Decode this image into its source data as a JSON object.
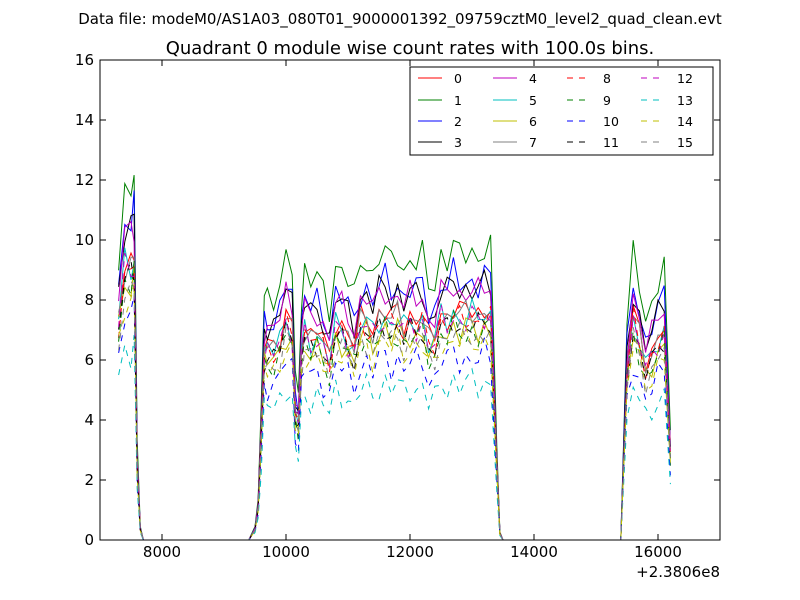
{
  "chart_data": {
    "type": "line",
    "suptitle": "Data file: modeM0/AS1A03_080T01_9000001392_09759cztM0_level2_quad_clean.evt",
    "title": "Quadrant 0 module wise count rates with 100.0s bins.",
    "xlabel": "",
    "ylabel": "",
    "xlim": [
      7000,
      17000
    ],
    "ylim": [
      0,
      16
    ],
    "xticks": [
      8000,
      10000,
      12000,
      14000,
      16000
    ],
    "xtick_labels": [
      "8000",
      "10000",
      "12000",
      "14000",
      "16000"
    ],
    "yticks": [
      0,
      2,
      4,
      6,
      8,
      10,
      12,
      14,
      16
    ],
    "ytick_labels": [
      "0",
      "2",
      "4",
      "6",
      "8",
      "10",
      "12",
      "14",
      "16"
    ],
    "x_offset_label": "+2.3806e8",
    "grid": false,
    "legend_placement": "top-right",
    "legend_columns": 4,
    "series": [
      {
        "name": "0",
        "color": "#ff0000",
        "dash": "solid",
        "level": 7.2
      },
      {
        "name": "1",
        "color": "#008000",
        "dash": "solid",
        "level": 9.0
      },
      {
        "name": "2",
        "color": "#0000ff",
        "dash": "solid",
        "level": 8.1
      },
      {
        "name": "3",
        "color": "#000000",
        "dash": "solid",
        "level": 7.9
      },
      {
        "name": "4",
        "color": "#bf00bf",
        "dash": "solid",
        "level": 7.8
      },
      {
        "name": "5",
        "color": "#00bfbf",
        "dash": "solid",
        "level": 7.0
      },
      {
        "name": "6",
        "color": "#bfbf00",
        "dash": "solid",
        "level": 6.6
      },
      {
        "name": "7",
        "color": "#808080",
        "dash": "solid",
        "level": 7.1
      },
      {
        "name": "8",
        "color": "#ff0000",
        "dash": "dashed",
        "level": 6.9
      },
      {
        "name": "9",
        "color": "#008000",
        "dash": "dashed",
        "level": 6.5
      },
      {
        "name": "10",
        "color": "#0000ff",
        "dash": "dashed",
        "level": 5.7
      },
      {
        "name": "11",
        "color": "#000000",
        "dash": "dashed",
        "level": 6.7
      },
      {
        "name": "12",
        "color": "#bf00bf",
        "dash": "dashed",
        "level": 6.9
      },
      {
        "name": "13",
        "color": "#00bfbf",
        "dash": "dashed",
        "level": 4.9
      },
      {
        "name": "14",
        "color": "#bfbf00",
        "dash": "dashed",
        "level": 6.2
      },
      {
        "name": "15",
        "color": "#808080",
        "dash": "dashed",
        "level": 6.4
      }
    ],
    "active_segments": [
      {
        "x": [
          7300,
          7400,
          7500,
          7550,
          7600,
          7650,
          7700
        ],
        "profile": [
          1.05,
          1.3,
          1.3,
          1.35,
          0.35,
          0.05,
          0
        ]
      },
      {
        "x": [
          7700,
          9400
        ],
        "profile": [
          0,
          0
        ]
      },
      {
        "x": [
          9400,
          9500,
          9550,
          9600,
          9650,
          9700,
          9800,
          9900,
          10000,
          10100,
          10150,
          10200,
          10250,
          10300,
          10400,
          10500,
          10600,
          10700,
          10800,
          10900,
          11000,
          11100,
          11200,
          11300,
          11400,
          11500,
          11600,
          11700,
          11800,
          11900,
          12000,
          12100,
          12200,
          12300,
          12400,
          12500,
          12600,
          12700,
          12800,
          12900,
          13000,
          13100,
          13200,
          13300,
          13400,
          13450,
          13500
        ],
        "profile": [
          0,
          0.05,
          0.15,
          0.5,
          0.9,
          0.9,
          0.9,
          0.95,
          1.05,
          1.0,
          0.6,
          0.55,
          0.9,
          1.0,
          0.95,
          0.98,
          0.92,
          0.85,
          1.02,
          1.0,
          0.96,
          0.9,
          1.02,
          1.04,
          0.98,
          1.05,
          1.07,
          1.02,
          1.06,
          1.0,
          1.04,
          1.03,
          1.05,
          0.93,
          0.95,
          1.06,
          1.04,
          1.09,
          1.05,
          1.06,
          1.07,
          1.05,
          1.08,
          1.07,
          0.35,
          0.03,
          0
        ]
      },
      {
        "x": [
          13500,
          15400
        ],
        "profile": [
          0,
          0
        ]
      },
      {
        "x": [
          15400,
          15500,
          15600,
          15700,
          15800,
          15900,
          16000,
          16100,
          16200
        ],
        "profile": [
          0,
          0.8,
          1.05,
          0.95,
          0.82,
          0.88,
          0.95,
          1.0,
          0.4
        ]
      }
    ]
  }
}
